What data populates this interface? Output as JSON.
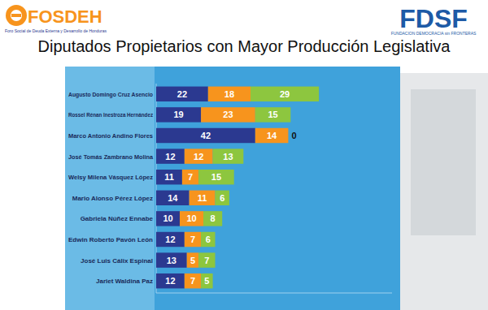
{
  "chart_data": {
    "type": "bar",
    "title": "Diputados Propietarios con Mayor Producción Legislativa",
    "annotations": [
      "FOSDEH",
      "Foro Social de Deuda Externa y Desarrollo de Honduras",
      "FDSF",
      "FUNDACION DEMOCRACIA sin FRONTERAS"
    ],
    "orientation": "horizontal",
    "stacked": true,
    "data_labels": true,
    "tick_labels": "y",
    "grid": false,
    "categories": [
      "Augusto Domingo Cruz Asencio",
      "Rossel Rénan Inestroza Hernández",
      "Marco Antonio Andino Flores",
      "José Tomás Zambrano Molina",
      "Welsy Milena Vásquez López",
      "Mario Alonso Pérez López",
      "Gabriela Núñez Ennabe",
      "Edwin Roberto Pavón León",
      "José Luis Cálix Espinal",
      "Jariet Waldina Paz"
    ],
    "series": [
      {
        "color": "#2b3990",
        "values": [
          22,
          19,
          42,
          12,
          11,
          14,
          10,
          12,
          13,
          12
        ]
      },
      {
        "color": "#f7941d",
        "values": [
          18,
          23,
          14,
          12,
          7,
          11,
          10,
          7,
          5,
          7
        ]
      },
      {
        "color": "#8dc63f",
        "values": [
          29,
          15,
          0,
          13,
          15,
          6,
          8,
          6,
          7,
          5
        ]
      }
    ],
    "xlim": [
      0,
      100
    ]
  }
}
